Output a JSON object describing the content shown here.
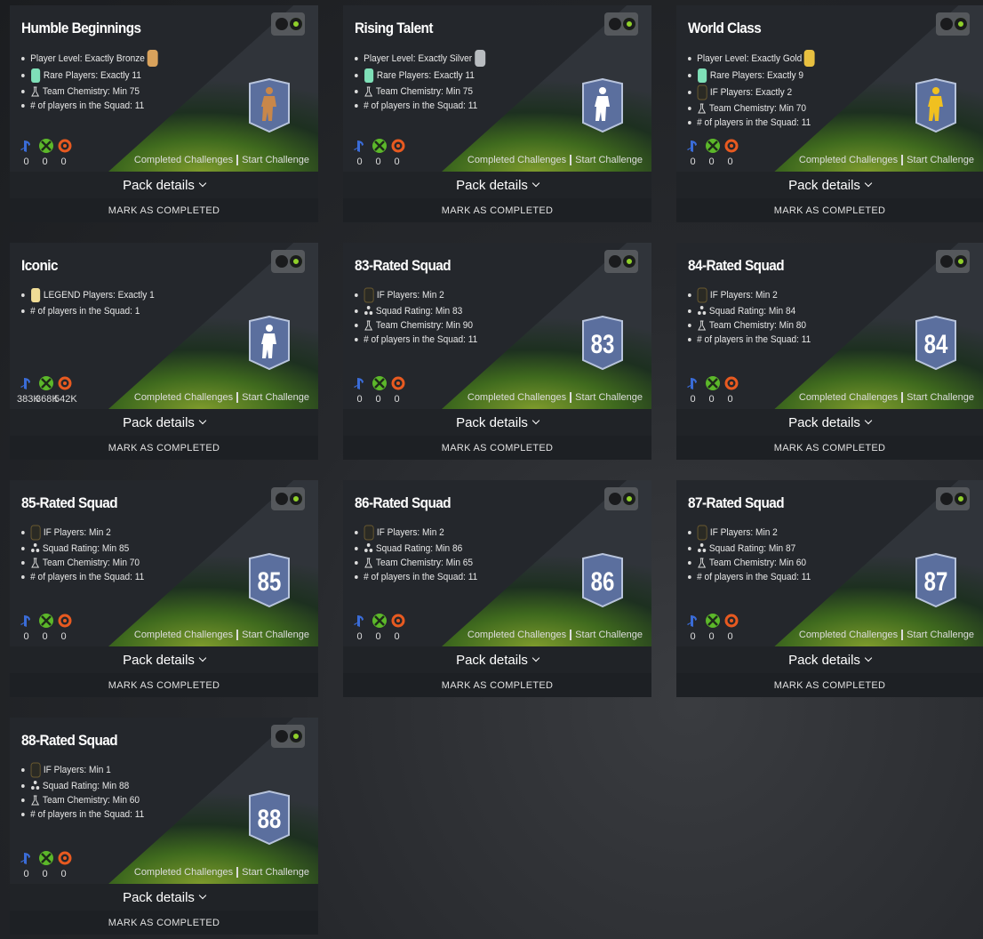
{
  "labels": {
    "completed": "Completed Challenges",
    "start": "Start Challenge",
    "pack": "Pack details",
    "mark": "MARK AS COMPLETED"
  },
  "cards": [
    {
      "title": "Humble Beginnings",
      "figure": "#c8874a",
      "requirements": [
        {
          "text": "Player Level: Exactly Bronze",
          "icon": "bronze"
        },
        {
          "text": "Rare Players: Exactly 11",
          "icon": "rare"
        },
        {
          "text": "Team Chemistry: Min 75",
          "icon": "chem"
        },
        {
          "text": "# of players in the Squad: 11"
        }
      ],
      "counts": [
        "0",
        "0",
        "0"
      ]
    },
    {
      "title": "Rising Talent",
      "figure": "#ffffff",
      "requirements": [
        {
          "text": "Player Level: Exactly Silver",
          "icon": "silver"
        },
        {
          "text": "Rare Players: Exactly 11",
          "icon": "rare"
        },
        {
          "text": "Team Chemistry: Min 75",
          "icon": "chem"
        },
        {
          "text": "# of players in the Squad: 11"
        }
      ],
      "counts": [
        "0",
        "0",
        "0"
      ]
    },
    {
      "title": "World Class",
      "figure": "#f0c020",
      "requirements": [
        {
          "text": "Player Level: Exactly Gold",
          "icon": "gold"
        },
        {
          "text": "Rare Players: Exactly 9",
          "icon": "rare"
        },
        {
          "text": "IF Players: Exactly 2",
          "icon": "if"
        },
        {
          "text": "Team Chemistry: Min 70",
          "icon": "chem"
        },
        {
          "text": "# of players in the Squad: 11"
        }
      ],
      "counts": [
        "0",
        "0",
        "0"
      ]
    },
    {
      "title": "Iconic",
      "figure": "#ffffff",
      "requirements": [
        {
          "text": "LEGEND Players: Exactly 1",
          "icon": "legend"
        },
        {
          "text": "# of players in the Squad: 1"
        }
      ],
      "counts": [
        "383K",
        "368K",
        "542K"
      ]
    },
    {
      "title": "83-Rated Squad",
      "badge": 83,
      "requirements": [
        {
          "text": "IF Players: Min 2",
          "icon": "if"
        },
        {
          "text": "Squad Rating: Min 83",
          "icon": "rating"
        },
        {
          "text": "Team Chemistry: Min 90",
          "icon": "chem"
        },
        {
          "text": "# of players in the Squad: 11"
        }
      ],
      "counts": [
        "0",
        "0",
        "0"
      ]
    },
    {
      "title": "84-Rated Squad",
      "badge": 84,
      "requirements": [
        {
          "text": "IF Players: Min 2",
          "icon": "if"
        },
        {
          "text": "Squad Rating: Min 84",
          "icon": "rating"
        },
        {
          "text": "Team Chemistry: Min 80",
          "icon": "chem"
        },
        {
          "text": "# of players in the Squad: 11"
        }
      ],
      "counts": [
        "0",
        "0",
        "0"
      ]
    },
    {
      "title": "85-Rated Squad",
      "badge": 85,
      "requirements": [
        {
          "text": "IF Players: Min 2",
          "icon": "if"
        },
        {
          "text": "Squad Rating: Min 85",
          "icon": "rating"
        },
        {
          "text": "Team Chemistry: Min 70",
          "icon": "chem"
        },
        {
          "text": "# of players in the Squad: 11"
        }
      ],
      "counts": [
        "0",
        "0",
        "0"
      ]
    },
    {
      "title": "86-Rated Squad",
      "badge": 86,
      "requirements": [
        {
          "text": "IF Players: Min 2",
          "icon": "if"
        },
        {
          "text": "Squad Rating: Min 86",
          "icon": "rating"
        },
        {
          "text": "Team Chemistry: Min 65",
          "icon": "chem"
        },
        {
          "text": "# of players in the Squad: 11"
        }
      ],
      "counts": [
        "0",
        "0",
        "0"
      ]
    },
    {
      "title": "87-Rated Squad",
      "badge": 87,
      "requirements": [
        {
          "text": "IF Players: Min 2",
          "icon": "if"
        },
        {
          "text": "Squad Rating: Min 87",
          "icon": "rating"
        },
        {
          "text": "Team Chemistry: Min 60",
          "icon": "chem"
        },
        {
          "text": "# of players in the Squad: 11"
        }
      ],
      "counts": [
        "0",
        "0",
        "0"
      ]
    },
    {
      "title": "88-Rated Squad",
      "badge": 88,
      "requirements": [
        {
          "text": "IF Players: Min 1",
          "icon": "if"
        },
        {
          "text": "Squad Rating: Min 88",
          "icon": "rating"
        },
        {
          "text": "Team Chemistry: Min 60",
          "icon": "chem"
        },
        {
          "text": "# of players in the Squad: 11"
        }
      ],
      "counts": [
        "0",
        "0",
        "0"
      ]
    }
  ]
}
